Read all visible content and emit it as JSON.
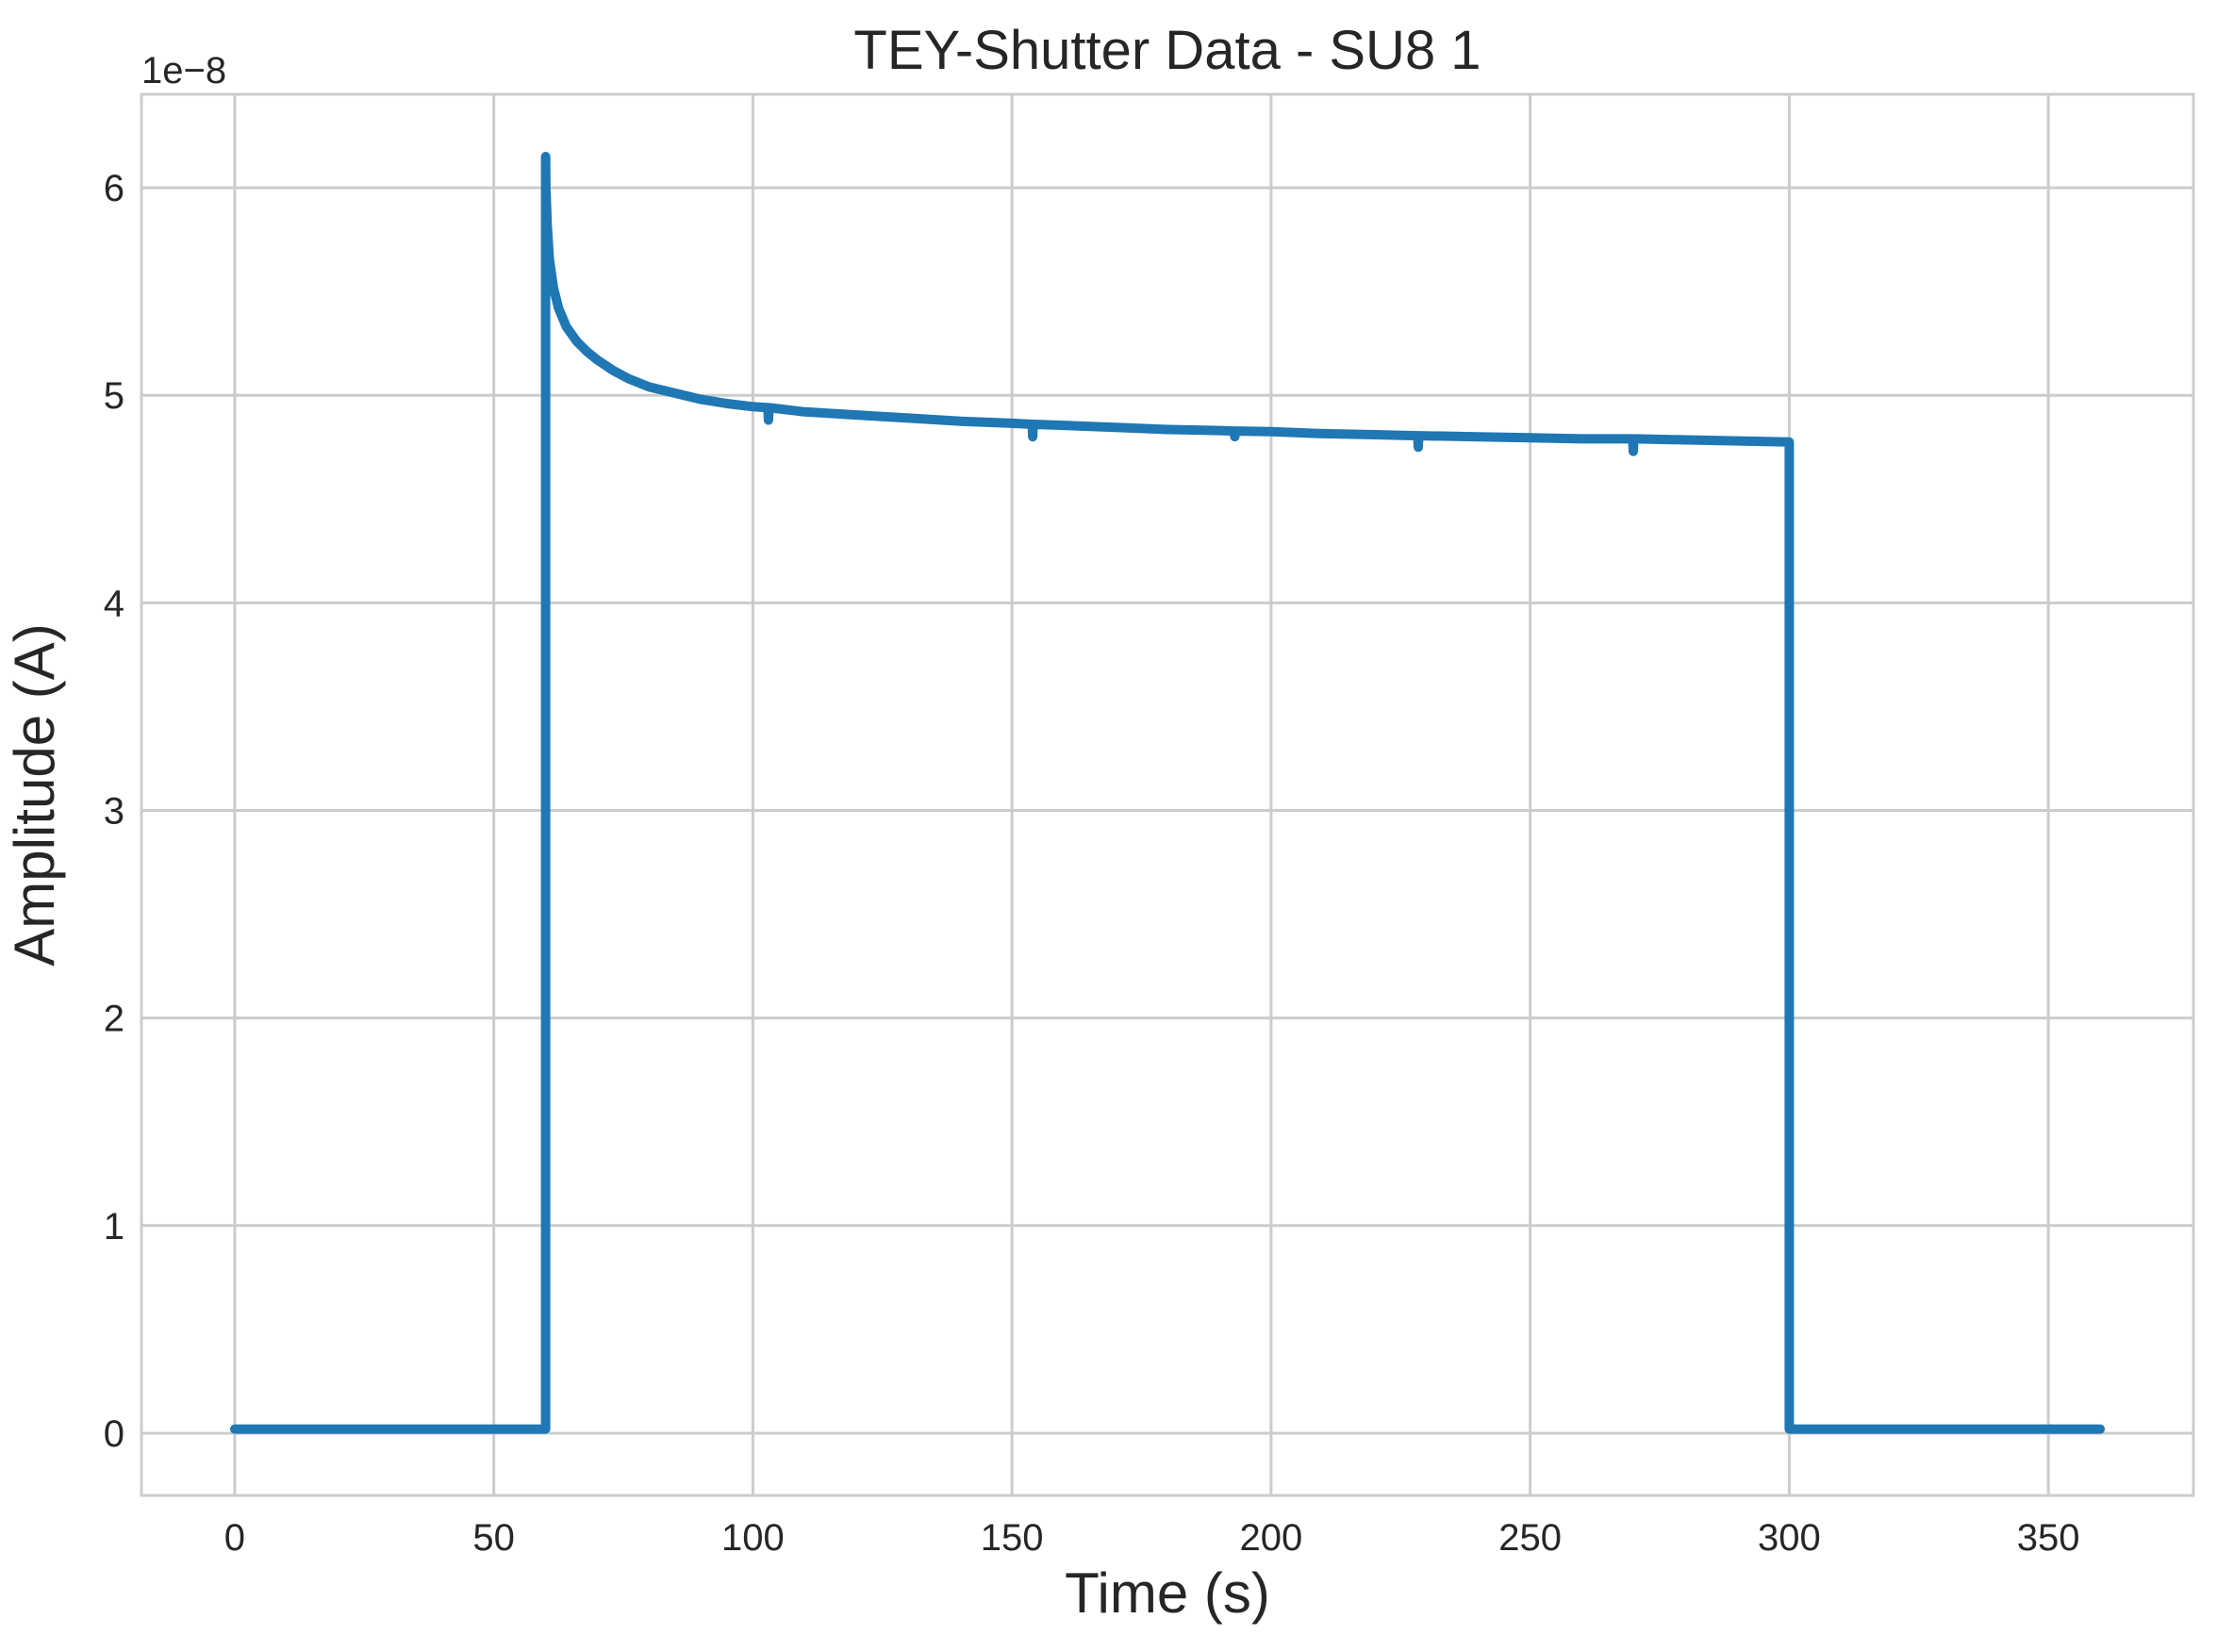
{
  "chart_data": {
    "type": "line",
    "title": "TEY-Shutter Data - SU8 1",
    "xlabel": "Time (s)",
    "ylabel": "Amplitude (A)",
    "y_offset_label": "1e−8",
    "xlim": [
      -18,
      378
    ],
    "ylim": [
      -0.3,
      6.45
    ],
    "x_ticks": [
      0,
      50,
      100,
      150,
      200,
      250,
      300,
      350
    ],
    "y_ticks": [
      0,
      1,
      2,
      3,
      4,
      5,
      6
    ],
    "grid": true,
    "legend": "none",
    "series": [
      {
        "color": "#1f77b4",
        "x": [
          0,
          60,
          60,
          60.05,
          60.3,
          60.7,
          61.5,
          62.5,
          64,
          66,
          68,
          70,
          73,
          76,
          80,
          85,
          90,
          95,
          100,
          102.9,
          103,
          103.1,
          103.2,
          110,
          120,
          130,
          140,
          150,
          153.9,
          154,
          154.1,
          154.2,
          160,
          170,
          180,
          190,
          192.9,
          193,
          193.1,
          193.2,
          200,
          210,
          220,
          228.3,
          228.4,
          228.5,
          228.6,
          240,
          250,
          260,
          269.8,
          269.9,
          270,
          270.1,
          280,
          290,
          300,
          300,
          310,
          320,
          330,
          340,
          350,
          360
        ],
        "y": [
          0.02,
          0.02,
          6.15,
          6.0,
          5.82,
          5.66,
          5.52,
          5.42,
          5.33,
          5.26,
          5.21,
          5.17,
          5.12,
          5.08,
          5.04,
          5.01,
          4.98,
          4.96,
          4.945,
          4.94,
          4.88,
          4.94,
          4.94,
          4.92,
          4.905,
          4.89,
          4.875,
          4.865,
          4.86,
          4.8,
          4.86,
          4.86,
          4.855,
          4.845,
          4.835,
          4.83,
          4.828,
          4.8,
          4.828,
          4.828,
          4.825,
          4.815,
          4.81,
          4.805,
          4.75,
          4.805,
          4.805,
          4.8,
          4.795,
          4.79,
          4.79,
          4.73,
          4.79,
          4.79,
          4.785,
          4.78,
          4.775,
          0.02,
          0.02,
          0.02,
          0.02,
          0.02,
          0.02,
          0.02
        ]
      }
    ]
  }
}
